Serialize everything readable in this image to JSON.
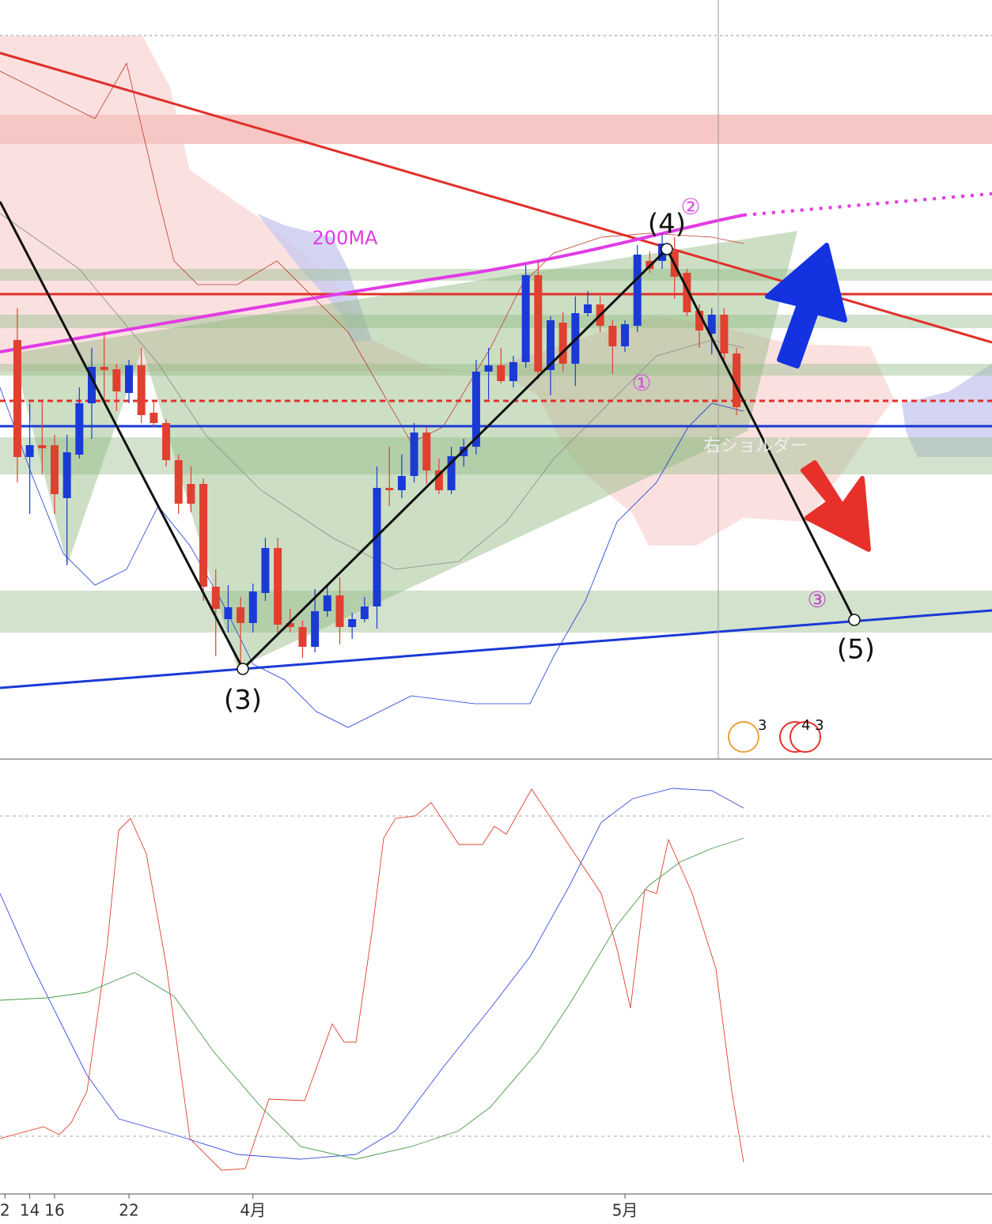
{
  "chart_data": {
    "type": "candlestick",
    "x": [
      13,
      14,
      15,
      16,
      17,
      18,
      19,
      20,
      21,
      22,
      23,
      24,
      25,
      26,
      27,
      28,
      29,
      30,
      31,
      32,
      33,
      34,
      35,
      36,
      37,
      38,
      39,
      40,
      41,
      42,
      43,
      44,
      45,
      46,
      47,
      48,
      49,
      50,
      51,
      52,
      53,
      54,
      55,
      56,
      57,
      58,
      59,
      60,
      61,
      62,
      63,
      64,
      65,
      66,
      67,
      68,
      69,
      70,
      71
    ],
    "open": [
      530,
      382,
      397,
      397,
      330,
      385,
      450,
      496,
      493,
      463,
      498,
      438,
      425,
      378,
      348,
      348,
      218,
      177,
      192,
      172,
      210,
      267,
      172,
      167,
      142,
      187,
      207,
      167,
      177,
      193,
      343,
      340,
      358,
      413,
      365,
      340,
      383,
      395,
      490,
      498,
      478,
      502,
      612,
      492,
      552,
      500,
      564,
      575,
      548,
      522,
      548,
      630,
      630,
      642,
      615,
      567,
      538,
      562,
      513
    ],
    "high": [
      570,
      450,
      455,
      410,
      410,
      470,
      520,
      540,
      500,
      505,
      520,
      452,
      430,
      385,
      370,
      355,
      240,
      220,
      205,
      222,
      280,
      280,
      190,
      175,
      215,
      220,
      230,
      185,
      205,
      370,
      395,
      385,
      425,
      420,
      380,
      395,
      405,
      505,
      520,
      520,
      510,
      625,
      630,
      560,
      565,
      585,
      592,
      585,
      555,
      555,
      650,
      642,
      665,
      660,
      620,
      575,
      570,
      570,
      520
    ],
    "low": [
      350,
      310,
      360,
      310,
      245,
      380,
      405,
      455,
      440,
      450,
      425,
      420,
      370,
      310,
      312,
      200,
      130,
      160,
      120,
      160,
      200,
      160,
      160,
      128,
      135,
      180,
      145,
      152,
      173,
      165,
      320,
      330,
      350,
      348,
      335,
      335,
      370,
      385,
      455,
      475,
      470,
      495,
      480,
      460,
      490,
      472,
      560,
      540,
      487,
      515,
      540,
      615,
      620,
      582,
      560,
      520,
      512,
      505,
      435
    ],
    "close": [
      382,
      397,
      393,
      335,
      388,
      450,
      496,
      492,
      465,
      498,
      435,
      425,
      378,
      323,
      323,
      218,
      190,
      192,
      172,
      212,
      267,
      170,
      167,
      142,
      187,
      207,
      167,
      177,
      193,
      343,
      340,
      358,
      413,
      365,
      340,
      383,
      395,
      490,
      498,
      478,
      502,
      612,
      490,
      555,
      500,
      564,
      575,
      548,
      522,
      550,
      638,
      620,
      652,
      610,
      565,
      542,
      562,
      513,
      445
    ],
    "up_color": "#1a3ad6",
    "down_color": "#e0402f",
    "xlim": [
      11.6,
      91.6
    ],
    "xticks": [
      {
        "value": 12,
        "label": "2"
      },
      22,
      {
        "value": 32,
        "label": "4月"
      },
      16,
      {
        "value": 62,
        "label": "5月"
      },
      14
    ],
    "ylim": [
      0,
      960
    ],
    "annotations": {
      "ma_label": "200MA",
      "wave_3": "(3)",
      "wave_4": "(4)",
      "wave_5": "(5)",
      "mark_1": "①",
      "mark_2": "②",
      "mark_3": "③",
      "pattern": "右ショルダー",
      "event_a": "3",
      "event_b": "4 3"
    }
  }
}
